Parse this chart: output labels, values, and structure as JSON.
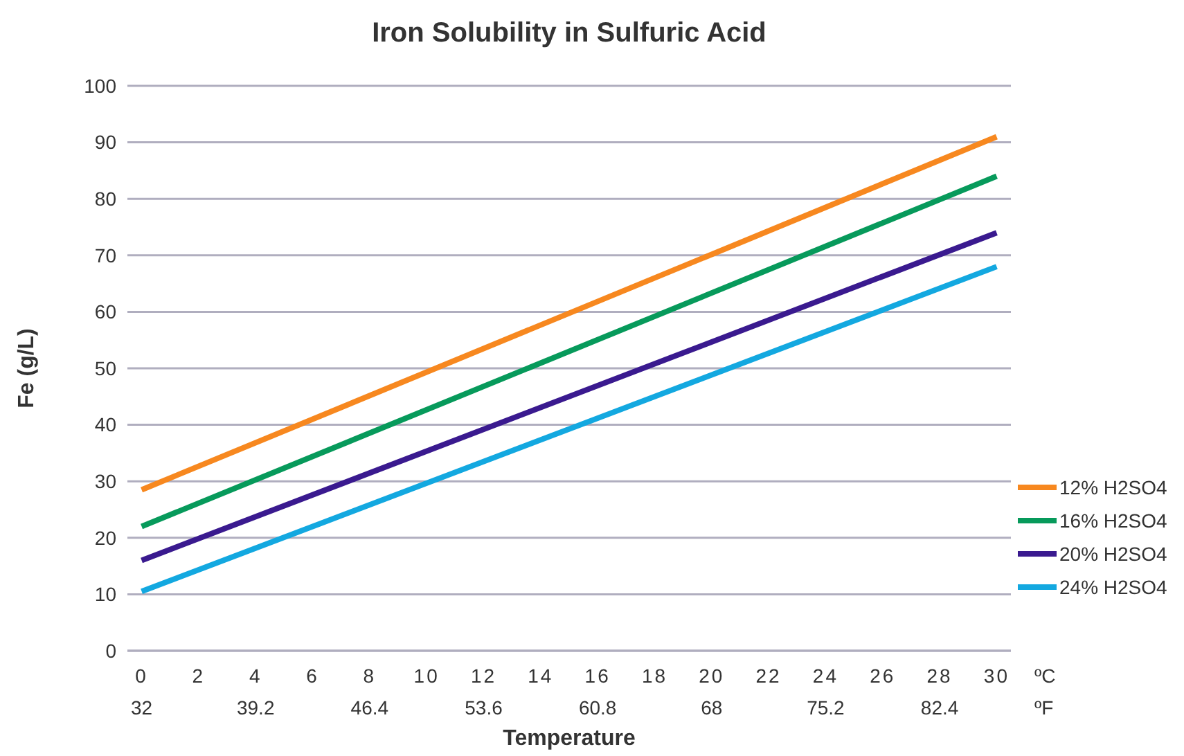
{
  "chart_data": {
    "type": "line",
    "title": "Iron Solubility in Sulfuric Acid",
    "xlabel": "Temperature",
    "ylabel": "Fe (g/L)",
    "x": [
      0,
      30
    ],
    "xlim": [
      -0.5,
      30.5
    ],
    "xticks": [
      0,
      2,
      4,
      6,
      8,
      10,
      12,
      14,
      16,
      18,
      20,
      22,
      24,
      26,
      28,
      30
    ],
    "x2lim": [
      31.1,
      86.9
    ],
    "x2ticks": [
      32,
      39.2,
      46.4,
      53.6,
      60.8,
      68,
      75.2,
      82.4
    ],
    "ylim": [
      0,
      100
    ],
    "yticks": [
      0,
      10,
      20,
      30,
      40,
      50,
      60,
      70,
      80,
      90,
      100
    ],
    "grid": "y",
    "legend": "right",
    "marker": "none",
    "line_style": "solid",
    "annotations": [
      "ºC",
      "ºF"
    ],
    "series": [
      {
        "name": "12% H2SO4",
        "color": "#f7881f",
        "values": [
          28.5,
          91
        ]
      },
      {
        "name": "16% H2SO4",
        "color": "#079a5b",
        "values": [
          22,
          84
        ]
      },
      {
        "name": "20% H2SO4",
        "color": "#3a1a8f",
        "values": [
          16,
          74
        ]
      },
      {
        "name": "24% H2SO4",
        "color": "#13a8e0",
        "values": [
          10.5,
          68
        ]
      }
    ]
  }
}
